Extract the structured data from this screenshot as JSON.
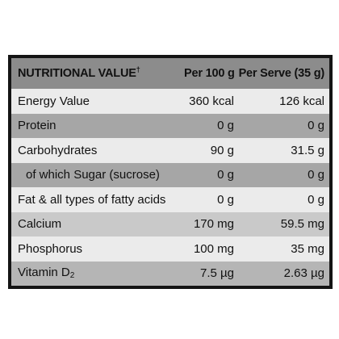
{
  "table": {
    "header": {
      "name": "NUTRITIONAL VALUE",
      "name_mark": "†",
      "per100": "Per 100 g",
      "perServe": "Per Serve (35 g)"
    },
    "rows": [
      {
        "name": "Energy Value",
        "per100": "360 kcal",
        "perServe": "126 kcal"
      },
      {
        "name": "Protein",
        "per100": "0 g",
        "perServe": "0 g"
      },
      {
        "name": "Carbohydrates",
        "per100": "90 g",
        "perServe": "31.5 g"
      },
      {
        "name": "of which Sugar (sucrose)",
        "per100": "0 g",
        "perServe": "0 g"
      },
      {
        "name": "Fat & all types of fatty acids",
        "per100": "0 g",
        "perServe": "0 g"
      },
      {
        "name": "Calcium",
        "per100": "170 mg",
        "perServe": "59.5 mg"
      },
      {
        "name": "Phosphorus",
        "per100": "100 mg",
        "perServe": "35 mg"
      },
      {
        "name": "Vitamin D",
        "name_sub": "2",
        "per100": "7.5 µg",
        "perServe": "2.63 µg"
      }
    ]
  }
}
